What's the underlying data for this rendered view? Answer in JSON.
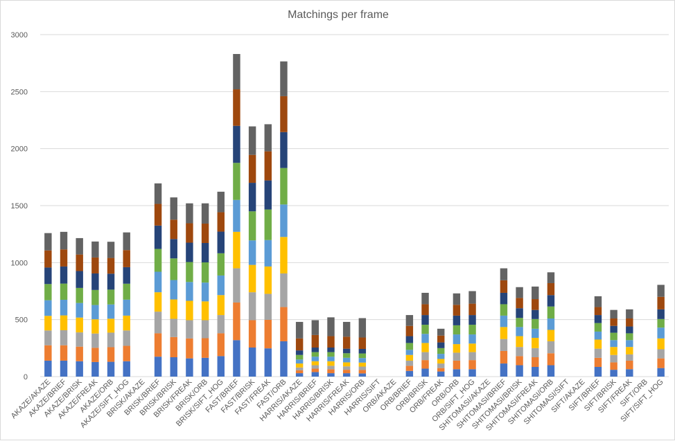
{
  "chart_data": {
    "type": "bar",
    "stacked": true,
    "title": "Matchings per frame",
    "xlabel": "",
    "ylabel": "",
    "ylim": [
      0,
      3000
    ],
    "yticks": [
      0,
      500,
      1000,
      1500,
      2000,
      2500,
      3000
    ],
    "grid": true,
    "legend": "none",
    "categories": [
      "AKAZE/AKAZE",
      "AKAZE/BRIEF",
      "AKAZE/BRISK",
      "AKAZE/FREAK",
      "AKAZE/ORB",
      "AKAZE/SIFT_HOG",
      "BRISK/AKAZE",
      "BRISK/BRIEF",
      "BRISK/BRISK",
      "BRISK/FREAK",
      "BRISK/ORB",
      "BRISK/SIFT_HOG",
      "FAST/BRIEF",
      "FAST/BRISK",
      "FAST/FREAK",
      "FAST/ORB",
      "HARRIS/AKAZE",
      "HARRIS/BRIEF",
      "HARRIS/BRISK",
      "HARRIS/FREAK",
      "HARRIS/ORB",
      "HARRIS/SIFT",
      "ORB/AKAZE",
      "ORB/BRIEF",
      "ORB/BRISK",
      "ORB/FREAK",
      "ORB/ORB",
      "ORB/SIFT_HOG",
      "SHITOMASI/AKAZE",
      "SHITOMASI/BRIEF",
      "SHITOMASI/BRISK",
      "SHITOMASI/FREAK",
      "SHITOMASI/ORB",
      "SHITOMASI/SIFT",
      "SIFT/AKAZE",
      "SIFT/BRIEF",
      "SIFT/BRISK",
      "SIFT/FREAK",
      "SIFT/ORB",
      "SIFT/SIFT_HOG"
    ],
    "series": [
      {
        "color": "#4472c4",
        "values": [
          140,
          140,
          135,
          128,
          130,
          135,
          0,
          175,
          170,
          160,
          165,
          180,
          320,
          255,
          248,
          310,
          30,
          40,
          30,
          30,
          28,
          0,
          0,
          50,
          70,
          45,
          65,
          65,
          0,
          115,
          100,
          85,
          100,
          0,
          0,
          85,
          60,
          65,
          0,
          75
        ]
      },
      {
        "color": "#ed7d31",
        "values": [
          135,
          135,
          128,
          125,
          128,
          135,
          0,
          205,
          177,
          175,
          172,
          200,
          330,
          240,
          250,
          300,
          25,
          30,
          35,
          30,
          30,
          0,
          0,
          45,
          75,
          30,
          75,
          80,
          0,
          110,
          80,
          85,
          105,
          0,
          0,
          80,
          65,
          75,
          0,
          85
        ]
      },
      {
        "color": "#a5a5a5",
        "values": [
          130,
          132,
          125,
          125,
          128,
          135,
          0,
          190,
          160,
          160,
          158,
          160,
          300,
          245,
          228,
          295,
          25,
          30,
          30,
          30,
          30,
          0,
          0,
          45,
          70,
          40,
          70,
          70,
          0,
          105,
          80,
          80,
          105,
          0,
          0,
          80,
          65,
          55,
          0,
          80
        ]
      },
      {
        "color": "#ffc000",
        "values": [
          128,
          130,
          130,
          125,
          122,
          130,
          0,
          170,
          170,
          170,
          165,
          175,
          320,
          240,
          240,
          320,
          35,
          35,
          40,
          35,
          35,
          0,
          0,
          50,
          80,
          40,
          75,
          75,
          0,
          105,
          95,
          90,
          100,
          0,
          0,
          80,
          70,
          65,
          0,
          95
        ]
      },
      {
        "color": "#5b9bd5",
        "values": [
          137,
          137,
          128,
          125,
          125,
          140,
          0,
          180,
          170,
          165,
          165,
          172,
          280,
          215,
          232,
          285,
          35,
          40,
          40,
          40,
          40,
          0,
          0,
          45,
          80,
          45,
          85,
          80,
          0,
          100,
          80,
          80,
          100,
          0,
          0,
          70,
          60,
          60,
          0,
          95
        ]
      },
      {
        "color": "#70ad47",
        "values": [
          142,
          142,
          132,
          132,
          130,
          140,
          0,
          200,
          190,
          175,
          177,
          195,
          325,
          255,
          268,
          320,
          40,
          40,
          40,
          40,
          40,
          0,
          0,
          60,
          80,
          50,
          80,
          85,
          0,
          100,
          80,
          85,
          105,
          0,
          0,
          75,
          65,
          60,
          0,
          75
        ]
      },
      {
        "color": "#264478",
        "values": [
          145,
          150,
          148,
          145,
          140,
          145,
          0,
          205,
          170,
          170,
          170,
          190,
          325,
          250,
          255,
          315,
          40,
          40,
          40,
          40,
          40,
          0,
          0,
          60,
          85,
          50,
          85,
          85,
          0,
          100,
          85,
          80,
          100,
          0,
          0,
          70,
          60,
          60,
          0,
          85
        ]
      },
      {
        "color": "#9e480e",
        "values": [
          150,
          150,
          145,
          140,
          138,
          150,
          0,
          190,
          170,
          170,
          170,
          170,
          320,
          245,
          255,
          315,
          105,
          110,
          100,
          105,
          100,
          0,
          0,
          90,
          95,
          60,
          95,
          100,
          0,
          110,
          90,
          95,
          105,
          0,
          0,
          70,
          65,
          70,
          0,
          110
        ]
      },
      {
        "color": "#636363",
        "values": [
          152,
          154,
          144,
          140,
          142,
          155,
          0,
          180,
          195,
          175,
          178,
          180,
          310,
          250,
          238,
          305,
          145,
          130,
          165,
          130,
          170,
          0,
          0,
          95,
          100,
          60,
          100,
          110,
          0,
          105,
          95,
          110,
          95,
          0,
          0,
          95,
          75,
          80,
          0,
          105
        ]
      }
    ]
  }
}
